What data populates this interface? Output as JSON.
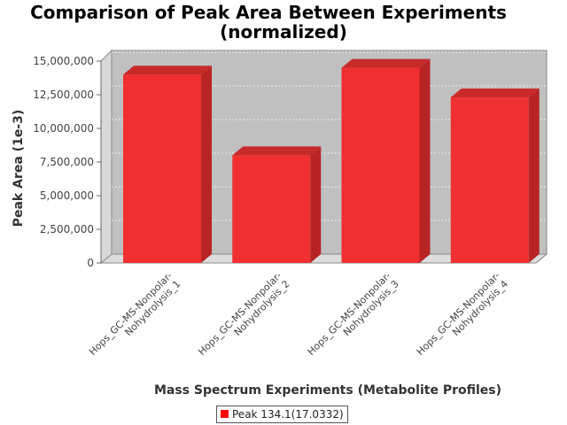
{
  "chart_data": {
    "type": "bar",
    "title": "Comparison of Peak Area Between Experiments (normalized)",
    "title_lines": [
      "Comparison of Peak Area Between Experiments",
      "(normalized)"
    ],
    "xlabel": "Mass Spectrum Experiments (Metabolite Profiles)",
    "ylabel": "Peak Area (1e-3)",
    "ylim": [
      0,
      15000000
    ],
    "yticks": [
      0,
      2500000,
      5000000,
      7500000,
      10000000,
      12500000,
      15000000
    ],
    "ytick_labels": [
      "0",
      "2,500,000",
      "5,000,000",
      "7,500,000",
      "10,000,000",
      "12,500,000",
      "15,000,000"
    ],
    "categories": [
      "Hops_GC-MS-Nonpolar-Nohydrolysis_1",
      "Hops_GC-MS-Nonpolar-Nohydrolysis_2",
      "Hops_GC-MS-Nonpolar-Nohydrolysis_3",
      "Hops_GC-MS-Nonpolar-Nohydrolysis_4"
    ],
    "category_lines": [
      [
        "Hops_GC-MS-Nonpolar-",
        "Nohydrolysis_1"
      ],
      [
        "Hops_GC-MS-Nonpolar-",
        "Nohydrolysis_2"
      ],
      [
        "Hops_GC-MS-Nonpolar-",
        "Nohydrolysis_3"
      ],
      [
        "Hops_GC-MS-Nonpolar-",
        "Nohydrolysis_4"
      ]
    ],
    "series": [
      {
        "name": "Peak 134.1(17.0332)",
        "values": [
          14000000,
          8000000,
          14500000,
          12300000
        ],
        "color": "#ff0000"
      }
    ],
    "grid": true,
    "legend_position": "bottom",
    "plot_background": "#c0c0c0"
  }
}
